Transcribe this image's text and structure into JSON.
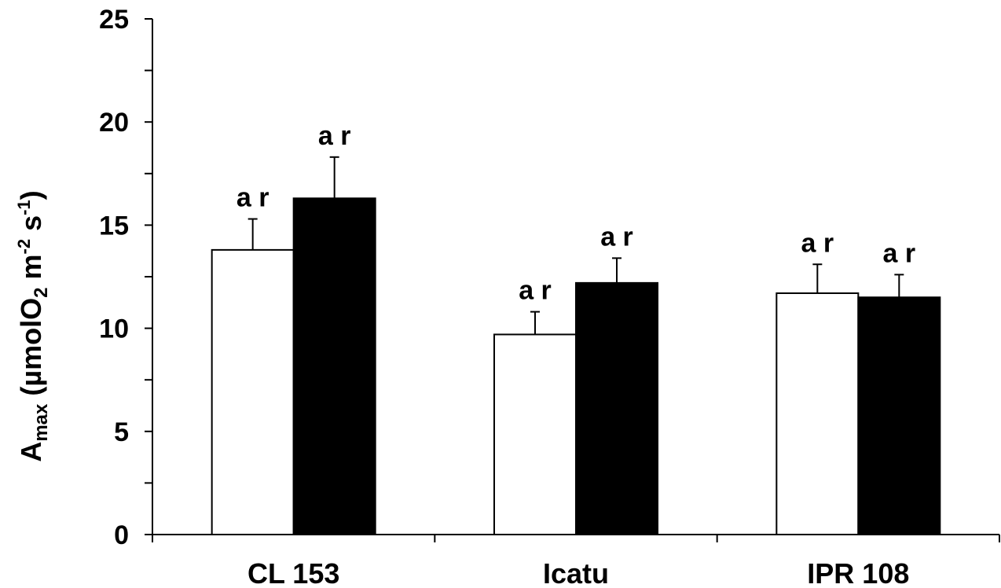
{
  "chart_data": {
    "type": "bar",
    "title": "",
    "xlabel": "",
    "ylabel": {
      "main": "A",
      "sub": "max",
      "unit_open": " (µmolO",
      "unit_sub": "2",
      "unit_m": " m",
      "unit_m_sup": "-2",
      "unit_s": " s",
      "unit_s_sup": "-1",
      "unit_close": ")"
    },
    "ylim": [
      0,
      25
    ],
    "yticks": [
      0,
      5,
      10,
      15,
      20,
      25
    ],
    "ytick_labels": [
      "0",
      "5",
      "10",
      "15",
      "20",
      "25"
    ],
    "minor_tick_step": 2.5,
    "grid": false,
    "legend": "none",
    "categories": [
      "CL 153",
      "Icatu",
      "IPR 108"
    ],
    "series": [
      {
        "fill": "#ffffff",
        "values": [
          13.8,
          9.7,
          11.7
        ],
        "errors": [
          1.5,
          1.1,
          1.4
        ],
        "labels": [
          "a r",
          "a r",
          "a r"
        ]
      },
      {
        "fill": "#000000",
        "values": [
          16.3,
          12.2,
          11.5
        ],
        "errors": [
          2.0,
          1.2,
          1.1
        ],
        "labels": [
          "a r",
          "a r",
          "a r"
        ]
      }
    ]
  }
}
